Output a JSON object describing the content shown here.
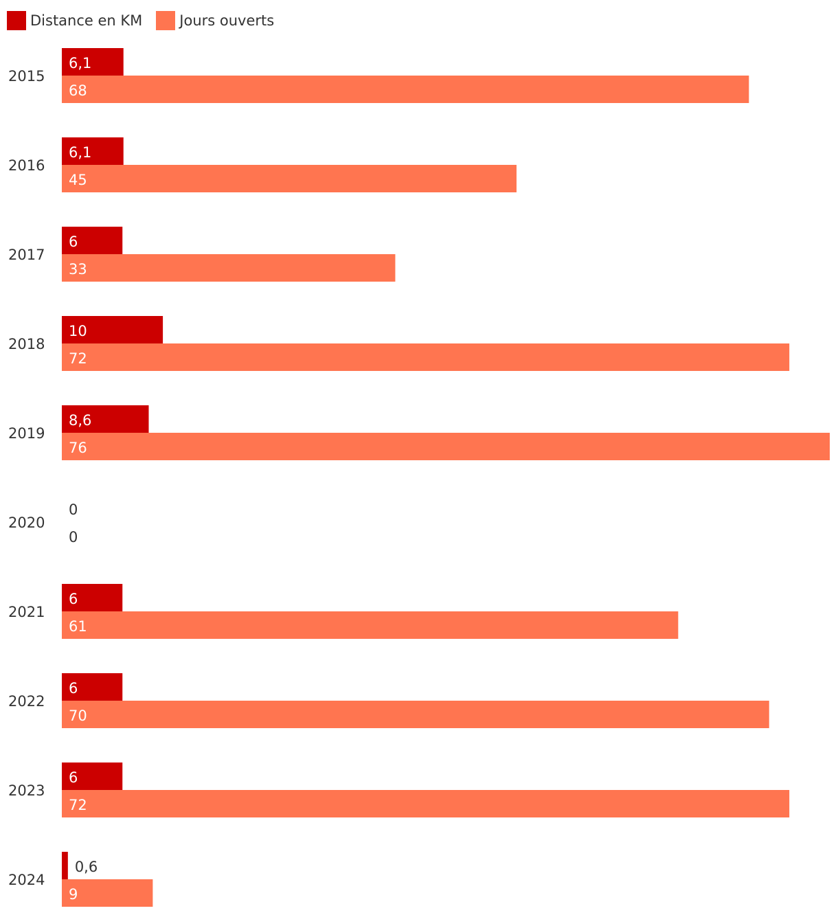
{
  "legend": {
    "items": [
      {
        "label": "Distance en KM",
        "color": "#cc0000"
      },
      {
        "label": "Jours ouverts",
        "color": "#ff7550"
      }
    ]
  },
  "chart_data": {
    "type": "bar",
    "orientation": "horizontal",
    "categories": [
      "2015",
      "2016",
      "2017",
      "2018",
      "2019",
      "2020",
      "2021",
      "2022",
      "2023",
      "2024"
    ],
    "series": [
      {
        "name": "Distance en KM",
        "color": "#cc0000",
        "values": [
          6.1,
          6.1,
          6,
          10,
          8.6,
          0,
          6,
          6,
          6,
          0.6
        ],
        "labels": [
          "6,1",
          "6,1",
          "6",
          "10",
          "8,6",
          "0",
          "6",
          "6",
          "6",
          "0,6"
        ]
      },
      {
        "name": "Jours ouverts",
        "color": "#ff7550",
        "values": [
          68,
          45,
          33,
          72,
          76,
          0,
          61,
          70,
          72,
          9
        ],
        "labels": [
          "68",
          "45",
          "33",
          "72",
          "76",
          "0",
          "61",
          "70",
          "72",
          "9"
        ]
      }
    ],
    "xlim": [
      0,
      76
    ],
    "grid": false,
    "legend_position": "top-left",
    "value_labels": "inside-start"
  }
}
